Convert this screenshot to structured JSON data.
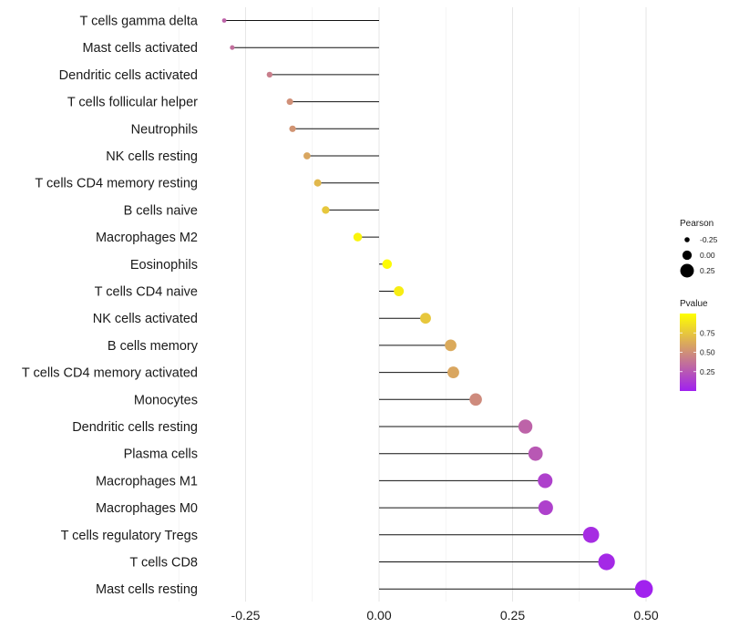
{
  "chart_data": {
    "type": "lollipop",
    "categories": [
      "T cells gamma delta",
      "Mast cells activated",
      "Dendritic cells activated",
      "T cells follicular helper",
      "Neutrophils",
      "NK cells resting",
      "T cells CD4 memory resting",
      "B cells naive",
      "Macrophages M2",
      "Eosinophils",
      "T cells CD4 naive",
      "NK cells activated",
      "B cells memory",
      "T cells CD4 memory activated",
      "Monocytes",
      "Dendritic cells resting",
      "Plasma cells",
      "Macrophages M1",
      "Macrophages M0",
      "T cells regulatory  Tregs ",
      "T cells CD8",
      "Mast cells resting"
    ],
    "values": [
      -0.29,
      -0.275,
      -0.205,
      -0.167,
      -0.162,
      -0.135,
      -0.115,
      -0.1,
      -0.04,
      0.015,
      0.037,
      0.087,
      0.134,
      0.139,
      0.181,
      0.274,
      0.293,
      0.311,
      0.312,
      0.397,
      0.426,
      0.496
    ],
    "pvalues": [
      0.3,
      0.35,
      0.42,
      0.5,
      0.52,
      0.6,
      0.68,
      0.75,
      0.95,
      0.98,
      0.92,
      0.75,
      0.62,
      0.6,
      0.48,
      0.3,
      0.25,
      0.15,
      0.15,
      0.06,
      0.04,
      0.01
    ],
    "xlim": [
      -0.3,
      0.5
    ],
    "xticks": [
      -0.25,
      0.0,
      0.25,
      0.5
    ],
    "xtick_labels": [
      "-0.25",
      "0.00",
      "0.25",
      "0.50"
    ],
    "grid": true,
    "title": "",
    "xlabel": "",
    "ylabel": "",
    "legend": {
      "size_title": "Pearson",
      "size_entries": [
        {
          "label": "-0.25",
          "value": -0.25
        },
        {
          "label": "0.00",
          "value": 0.0
        },
        {
          "label": "0.25",
          "value": 0.25
        }
      ],
      "color_title": "Pvalue",
      "color_ticks": [
        {
          "label": "0.75",
          "value": 0.75
        },
        {
          "label": "0.50",
          "value": 0.5
        },
        {
          "label": "0.25",
          "value": 0.25
        }
      ],
      "color_range": [
        0.0,
        1.0
      ],
      "color_low": "#A020F0",
      "color_high": "#FFFF00"
    }
  }
}
